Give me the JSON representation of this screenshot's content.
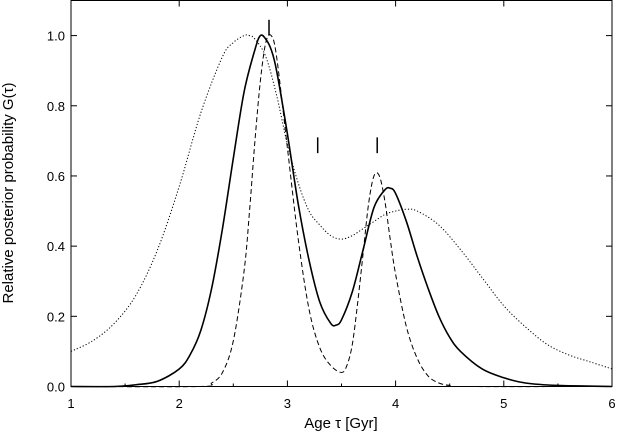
{
  "chart_data": {
    "type": "line",
    "xlabel": "Age τ  [Gyr]",
    "ylabel": "Relative posterior probability G(τ)",
    "xlim": [
      1,
      6
    ],
    "ylim": [
      0,
      1.1
    ],
    "x_ticks": [
      "1",
      "2",
      "3",
      "4",
      "5",
      "6"
    ],
    "y_ticks": [
      "0.0",
      "0.2",
      "0.4",
      "0.6",
      "0.8",
      "1.0"
    ],
    "grid": false,
    "legend": "none",
    "series": [
      {
        "style": "solid",
        "x": [
          1.0,
          1.4,
          1.6,
          1.8,
          2.0,
          2.1,
          2.2,
          2.3,
          2.4,
          2.5,
          2.6,
          2.7,
          2.75,
          2.8,
          2.85,
          2.9,
          3.0,
          3.1,
          3.2,
          3.3,
          3.4,
          3.45,
          3.5,
          3.6,
          3.7,
          3.8,
          3.9,
          3.95,
          4.0,
          4.1,
          4.2,
          4.3,
          4.4,
          4.5,
          4.6,
          4.8,
          5.0,
          5.2,
          5.5,
          6.0
        ],
        "values": [
          0.0,
          0.0,
          0.005,
          0.015,
          0.05,
          0.09,
          0.16,
          0.28,
          0.45,
          0.65,
          0.84,
          0.96,
          1.0,
          0.99,
          0.96,
          0.9,
          0.72,
          0.52,
          0.36,
          0.24,
          0.18,
          0.175,
          0.19,
          0.27,
          0.39,
          0.51,
          0.56,
          0.565,
          0.55,
          0.47,
          0.37,
          0.28,
          0.2,
          0.14,
          0.1,
          0.05,
          0.025,
          0.01,
          0.003,
          0.0
        ]
      },
      {
        "style": "dashed",
        "x": [
          1.0,
          2.2,
          2.3,
          2.4,
          2.5,
          2.6,
          2.65,
          2.7,
          2.75,
          2.8,
          2.85,
          2.9,
          3.0,
          3.1,
          3.2,
          3.3,
          3.4,
          3.5,
          3.55,
          3.6,
          3.65,
          3.7,
          3.75,
          3.8,
          3.85,
          3.9,
          3.95,
          4.0,
          4.1,
          4.2,
          4.3,
          4.4,
          4.5,
          4.6,
          6.0
        ],
        "values": [
          0.0,
          0.0,
          0.01,
          0.04,
          0.13,
          0.33,
          0.5,
          0.7,
          0.87,
          0.98,
          1.0,
          0.94,
          0.68,
          0.42,
          0.22,
          0.11,
          0.06,
          0.04,
          0.06,
          0.12,
          0.24,
          0.38,
          0.52,
          0.6,
          0.6,
          0.53,
          0.42,
          0.32,
          0.17,
          0.08,
          0.03,
          0.01,
          0.003,
          0.0,
          0.0
        ]
      },
      {
        "style": "dotted",
        "x": [
          1.0,
          1.2,
          1.4,
          1.6,
          1.8,
          2.0,
          2.2,
          2.4,
          2.5,
          2.6,
          2.65,
          2.7,
          2.8,
          2.9,
          3.0,
          3.1,
          3.2,
          3.3,
          3.4,
          3.5,
          3.6,
          3.7,
          3.8,
          3.9,
          4.0,
          4.1,
          4.2,
          4.4,
          4.6,
          4.8,
          5.0,
          5.2,
          5.4,
          5.6,
          5.8,
          6.0
        ],
        "values": [
          0.1,
          0.13,
          0.18,
          0.26,
          0.39,
          0.57,
          0.78,
          0.94,
          0.98,
          1.0,
          1.0,
          0.99,
          0.94,
          0.83,
          0.69,
          0.58,
          0.5,
          0.46,
          0.43,
          0.42,
          0.43,
          0.45,
          0.47,
          0.49,
          0.5,
          0.505,
          0.5,
          0.46,
          0.39,
          0.31,
          0.23,
          0.17,
          0.12,
          0.09,
          0.07,
          0.05
        ]
      }
    ],
    "markers": [
      {
        "x": 2.83,
        "y_bottom": 1.0,
        "y_top": 1.045
      },
      {
        "x": 3.28,
        "y_bottom": 0.665,
        "y_top": 0.71
      },
      {
        "x": 3.83,
        "y_bottom": 0.665,
        "y_top": 0.71
      }
    ]
  }
}
